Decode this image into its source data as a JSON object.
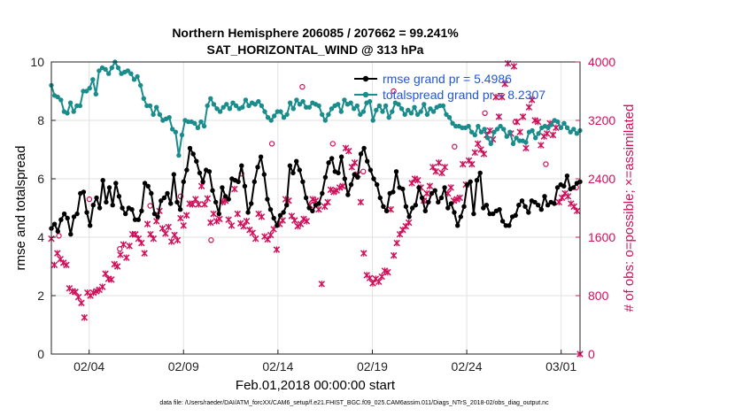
{
  "chart_data": {
    "type": "line",
    "title": "Northern Hemisphere 206085 / 207662 = 99.241%",
    "subtitle": "SAT_HORIZONTAL_WIND @ 313 hPa",
    "xlabel": "Feb.01,2018 00:00:00 start",
    "ylabel": "rmse and totalspread",
    "ylabel_right": "# of obs: o=possible; ×=assimilated",
    "footnote": "data file: /Users/raeder/DAI/ATM_forcXX/CAM6_setup/f.e21.FHIST_BGC.f09_025.CAM6assim.011/Diags_NTrS_2018-02/obs_diag_output.nc",
    "xlim": [
      1,
      29
    ],
    "ylim": [
      0,
      10
    ],
    "ylim_right": [
      0,
      4000
    ],
    "x_ticks": [
      3,
      8,
      13,
      18,
      23,
      28
    ],
    "x_tick_labels": [
      "02/04",
      "02/09",
      "02/14",
      "02/19",
      "02/24",
      "03/01"
    ],
    "y_ticks": [
      "0",
      "2",
      "4",
      "6",
      "8",
      "10"
    ],
    "y_ticks_right": [
      "0",
      "800",
      "1600",
      "2400",
      "3200",
      "4000"
    ],
    "grid": true,
    "legend_position": "top-right",
    "colors": {
      "rmse": "#000000",
      "spread": "#1a8c8c",
      "obs": "#d0105a",
      "legend_text": "#1f55e0"
    },
    "series": [
      {
        "name": "rmse grand pr = 5.4986",
        "axis": "left",
        "values": [
          4.3,
          4.45,
          4.2,
          4.6,
          4.8,
          4.65,
          4.1,
          4.7,
          4.8,
          5.5,
          5.55,
          4.85,
          4.4,
          5.1,
          5.35,
          5.0,
          5.95,
          5.2,
          5.7,
          5.1,
          5.85,
          5.4,
          5.0,
          4.8,
          5.0,
          4.95,
          4.6,
          4.6,
          4.9,
          5.85,
          5.75,
          5.5,
          4.8,
          4.7,
          5.25,
          5.35,
          5.5,
          5.15,
          6.15,
          5.2,
          4.95,
          5.9,
          6.3,
          7.05,
          6.85,
          6.6,
          6.2,
          5.9,
          6.3,
          6.25,
          5.6,
          5.2,
          4.8,
          5.7,
          5.4,
          5.3,
          6.0,
          5.95,
          5.9,
          6.45,
          5.75,
          4.85,
          5.15,
          5.9,
          6.4,
          6.75,
          6.15,
          5.3,
          4.95,
          4.65,
          4.4,
          4.75,
          4.85,
          5.1,
          6.45,
          6.2,
          6.6,
          6.3,
          5.9,
          5.35,
          5.0,
          4.9,
          5.1,
          5.15,
          5.5,
          6.05,
          6.55,
          6.7,
          6.25,
          6.2,
          6.75,
          6.0,
          5.45,
          5.8,
          6.15,
          6.05,
          6.85,
          7.05,
          6.6,
          6.3,
          6.0,
          5.8,
          5.35,
          5.05,
          4.9,
          5.5,
          5.55,
          6.25,
          5.7,
          5.65,
          5.05,
          4.7,
          5.0,
          5.1,
          5.7,
          5.35,
          4.9,
          5.2,
          5.5,
          5.6,
          5.2,
          5.35,
          5.7,
          5.0,
          5.15,
          4.85,
          4.4,
          4.7,
          5.05,
          5.8,
          5.9,
          4.8,
          5.95,
          6.2,
          5.0,
          5.1,
          4.8,
          4.8,
          4.9,
          4.95,
          4.55,
          4.4,
          4.4,
          4.7,
          4.75,
          5.1,
          5.25,
          5.05,
          4.85,
          5.25,
          5.2,
          5.1,
          4.95,
          5.4,
          5.1,
          5.2,
          5.15,
          5.7,
          5.8,
          5.75,
          6.1,
          5.65,
          5.7,
          5.85,
          5.9
        ]
      },
      {
        "name": "totalspread grand pr = 8.2307",
        "axis": "left",
        "values": [
          9.2,
          8.85,
          8.8,
          8.7,
          8.3,
          8.25,
          8.6,
          8.3,
          8.5,
          8.5,
          9.0,
          9.0,
          9.1,
          9.4,
          8.9,
          9.7,
          9.8,
          9.75,
          9.6,
          9.8,
          10.0,
          9.8,
          9.6,
          9.65,
          9.7,
          9.6,
          9.4,
          9.5,
          9.2,
          8.75,
          8.5,
          8.5,
          8.2,
          8.45,
          8.2,
          8.0,
          8.05,
          8.1,
          7.7,
          7.6,
          6.8,
          7.5,
          8.0,
          7.95,
          7.95,
          7.9,
          7.75,
          7.95,
          7.8,
          8.5,
          8.75,
          8.55,
          8.4,
          8.3,
          8.45,
          8.55,
          8.4,
          8.6,
          8.5,
          8.4,
          8.45,
          8.7,
          8.5,
          8.6,
          8.55,
          8.65,
          8.5,
          8.3,
          8.1,
          8.0,
          8.15,
          8.3,
          8.3,
          8.1,
          8.2,
          8.6,
          8.4,
          8.7,
          8.55,
          8.65,
          8.45,
          8.45,
          8.6,
          8.55,
          8.5,
          8.2,
          8.0,
          8.2,
          8.4,
          8.5,
          8.55,
          8.3,
          8.7,
          8.55,
          8.6,
          8.4,
          8.5,
          8.2,
          8.3,
          8.6,
          8.65,
          8.0,
          8.35,
          8.5,
          8.3,
          8.5,
          8.1,
          8.3,
          8.6,
          8.55,
          8.4,
          8.2,
          8.35,
          8.25,
          8.45,
          8.2,
          8.3,
          8.55,
          8.2,
          8.4,
          8.3,
          8.45,
          8.5,
          8.5,
          8.2,
          8.1,
          7.9,
          7.8,
          7.8,
          7.75,
          7.75,
          7.8,
          7.6,
          7.5,
          7.8,
          7.6,
          7.7,
          7.4,
          7.2,
          7.6,
          7.7,
          7.8,
          7.7,
          7.45,
          7.6,
          7.2,
          7.4,
          7.3,
          7.3,
          7.25,
          7.6,
          7.65,
          7.4,
          7.55,
          7.75,
          7.8,
          7.75,
          7.85,
          8.0,
          7.95,
          7.75,
          7.9,
          7.75,
          7.6,
          7.7,
          7.55,
          7.65
        ]
      },
      {
        "name": "obs assimilated",
        "axis": "right",
        "marker": "x",
        "values": [
          1580,
          1220,
          1380,
          1300,
          1250,
          1220,
          900,
          860,
          850,
          780,
          700,
          500,
          840,
          800,
          840,
          860,
          880,
          920,
          1100,
          1030,
          1020,
          1230,
          1200,
          1360,
          1500,
          1320,
          1480,
          1640,
          1640,
          1580,
          1520,
          1380,
          1780,
          1640,
          1580,
          1820,
          1960,
          1720,
          1650,
          1740,
          1540,
          1630,
          1560,
          1860,
          1760,
          1900,
          2060,
          2050,
          2120,
          2050,
          2300,
          2050,
          2130,
          1800,
          1920,
          1820,
          1850,
          2080,
          2100,
          1840,
          1760,
          2260,
          1920,
          1790,
          1750,
          1820,
          1700,
          1660,
          1580,
          1920,
          1880,
          1610,
          1570,
          1630,
          1710,
          1430,
          1780,
          1830,
          2120,
          2100,
          1890,
          1830,
          1750,
          1780,
          1850,
          1820,
          2040,
          2120,
          2100,
          1980,
          960,
          2020,
          2080,
          2250,
          2220,
          2240,
          2280,
          2300,
          2820,
          2780,
          2560,
          2620,
          2460,
          2080,
          1380,
          1080,
          1040,
          970,
          1030,
          990,
          1060,
          1140,
          1120,
          1980,
          1350,
          1520,
          1640,
          1700,
          1750,
          1800,
          2340,
          2400,
          2380,
          2280,
          2100,
          2200,
          2300,
          2560,
          2500,
          2620,
          2480,
          2560,
          2200,
          2280,
          2100,
          2120,
          2140,
          2600,
          2320,
          2650,
          2600,
          2760,
          2880,
          2800,
          2740,
          3000,
          3060,
          2940,
          3520,
          3250,
          3520,
          3700,
          3980,
          3020,
          3940,
          3180,
          3040,
          3250,
          2820,
          3380,
          3480,
          3200,
          3180,
          2860,
          2980,
          3020,
          3160,
          3000,
          3100,
          2080,
          2140,
          2200,
          2160,
          2060,
          2020,
          1960,
          0
        ]
      },
      {
        "name": "obs possible",
        "axis": "right",
        "marker": "o",
        "values": [
          1620,
          2120,
          1440,
          2030,
          2160,
          1560,
          2470,
          2880,
          3660,
          2880,
          2500,
          3600,
          2100,
          2840,
          3300,
          3180,
          2600,
          2280
        ]
      }
    ],
    "legend": [
      "rmse grand pr = 5.4986",
      "totalspread grand pr = 8.2307"
    ]
  }
}
